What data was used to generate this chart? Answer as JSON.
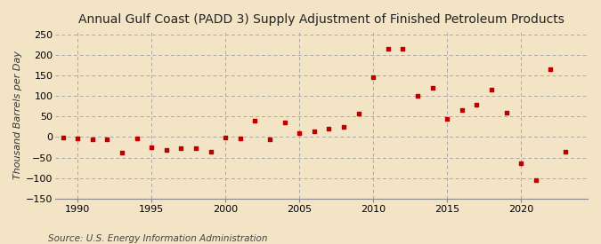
{
  "title": "Annual Gulf Coast (PADD 3) Supply Adjustment of Finished Petroleum Products",
  "ylabel": "Thousand Barrels per Day",
  "source": "Source: U.S. Energy Information Administration",
  "background_color": "#f2e4c4",
  "marker_color": "#c00000",
  "years": [
    1989,
    1990,
    1991,
    1992,
    1993,
    1994,
    1995,
    1996,
    1997,
    1998,
    1999,
    2000,
    2001,
    2002,
    2003,
    2004,
    2005,
    2006,
    2007,
    2008,
    2009,
    2010,
    2011,
    2012,
    2013,
    2014,
    2015,
    2016,
    2017,
    2018,
    2019,
    2020,
    2021,
    2022,
    2023
  ],
  "values": [
    -2,
    -3,
    -5,
    -5,
    -38,
    -3,
    -25,
    -32,
    -27,
    -28,
    -35,
    -1,
    -3,
    40,
    -5,
    35,
    10,
    15,
    20,
    25,
    57,
    145,
    215,
    215,
    100,
    120,
    45,
    65,
    80,
    115,
    60,
    -63,
    -105,
    165,
    -35
  ],
  "xlim": [
    1988.5,
    2024.5
  ],
  "ylim": [
    -150,
    260
  ],
  "yticks": [
    -150,
    -100,
    -50,
    0,
    50,
    100,
    150,
    200,
    250
  ],
  "xticks": [
    1990,
    1995,
    2000,
    2005,
    2010,
    2015,
    2020
  ],
  "grid_color": "#aaaaaa",
  "title_fontsize": 10,
  "axis_fontsize": 8,
  "source_fontsize": 7.5
}
